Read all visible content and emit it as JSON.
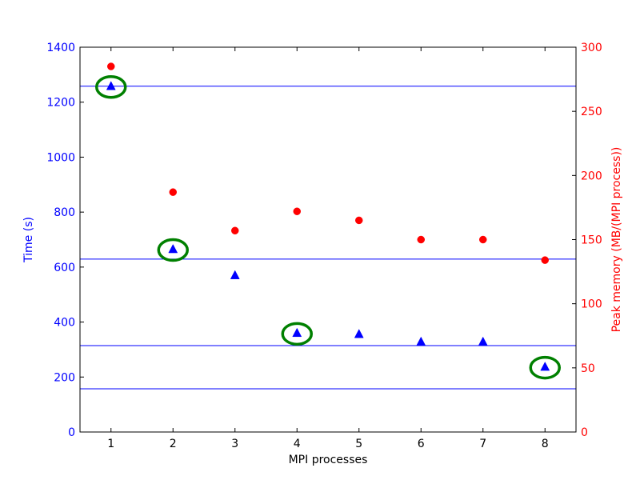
{
  "chart_data": {
    "type": "scatter",
    "x": [
      1,
      2,
      3,
      4,
      5,
      6,
      7,
      8
    ],
    "xlim": [
      0.5,
      8.5
    ],
    "x_ticks": [
      "1",
      "2",
      "3",
      "4",
      "5",
      "6",
      "7",
      "8"
    ],
    "xlabel": "MPI processes",
    "y_left": {
      "label": "Time (s)",
      "lim": [
        0,
        1400
      ],
      "ticks": [
        "0",
        "200",
        "400",
        "600",
        "800",
        "1000",
        "1200",
        "1400"
      ],
      "color": "#0000ff"
    },
    "y_right": {
      "label": "Peak memory (MB/(MPI process))",
      "lim": [
        0,
        300
      ],
      "ticks": [
        "0",
        "50",
        "100",
        "150",
        "200",
        "250",
        "300"
      ],
      "color": "#ff0000"
    },
    "series": [
      {
        "axis": "left",
        "marker": "triangle",
        "color": "#0000ff",
        "values": [
          1258,
          665,
          570,
          360,
          356,
          328,
          328,
          237
        ]
      },
      {
        "axis": "right",
        "marker": "circle",
        "color": "#ff0000",
        "values": [
          285,
          187,
          157,
          172,
          165,
          150,
          150,
          134
        ]
      }
    ],
    "reference_lines": {
      "axis": "left",
      "color": "#0000ff",
      "values": [
        1258,
        629,
        314.5,
        157.25
      ]
    },
    "highlights": {
      "color": "#008000",
      "x": [
        1,
        2,
        4,
        8
      ],
      "axis": "left",
      "values": [
        1258,
        665,
        360,
        237
      ]
    },
    "grid": false
  }
}
